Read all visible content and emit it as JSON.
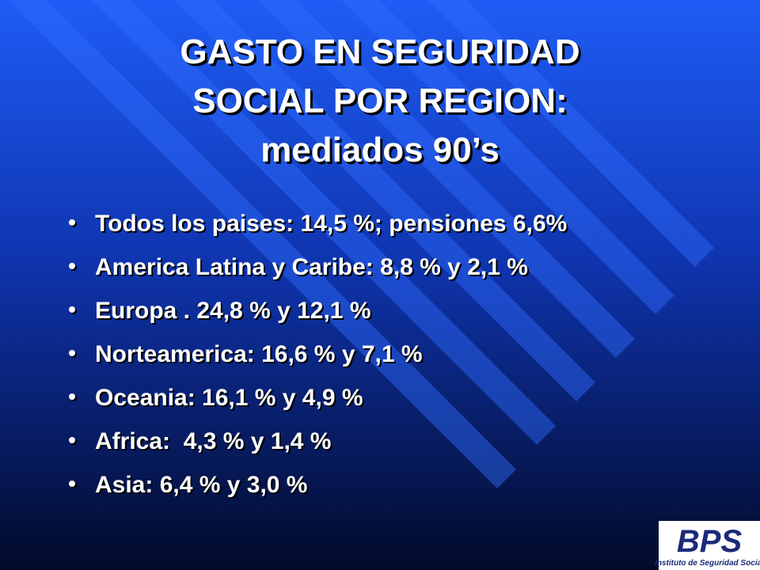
{
  "title": {
    "lines": [
      "GASTO EN SEGURIDAD",
      "SOCIAL POR REGION:",
      "mediados 90’s"
    ]
  },
  "bullets": [
    "Todos los paises: 14,5 %; pensiones 6,6%",
    "America Latina y Caribe: 8,8 % y 2,1 %",
    "Europa . 24,8 % y 12,1 %",
    "Norteamerica: 16,6 % y 7,1 %",
    "Oceania: 16,1 % y 4,9 %",
    "Africa:  4,3 % y 1,4 %",
    "Asia: 6,4 % y 3,0 %"
  ],
  "logo": {
    "mark": "BPS",
    "caption": "Instituto de Seguridad Social"
  }
}
